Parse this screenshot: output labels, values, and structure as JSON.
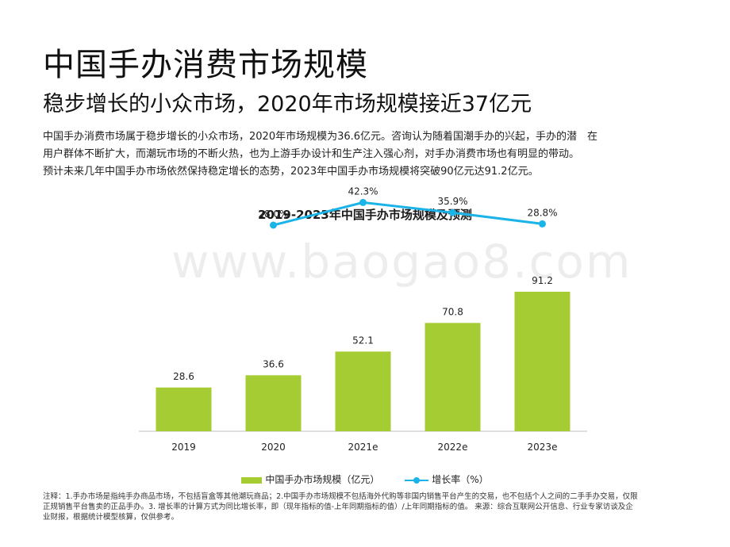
{
  "header": {
    "title": "中国手办消费市场规模",
    "subtitle": "稳步增长的小众市场，2020年市场规模接近37亿元"
  },
  "description": {
    "line1": "中国手办消费市场属于稳步增长的小众市场，2020年市场规模为36.6亿元。咨询认为随着国潮手办的兴起，手办的潜　在",
    "line2": "用户群体不断扩大，而潮玩市场的不断火热，也为上游手办设计和生产注入强心剂，对手办消费市场也有明显的带动。",
    "line3": "预计未来几年中国手办市场依然保持稳定增长的态势，2023年中国手办市场规模将突破90亿元达91.2亿元。"
  },
  "watermark": "www.baogao8.com",
  "chart_data": {
    "type": "bar",
    "title": "2019-2023年中国手办市场规模及预测",
    "categories": [
      "2019",
      "2020",
      "2021e",
      "2022e",
      "2023e"
    ],
    "series": [
      {
        "name": "中国手办市场规模（亿元）",
        "type": "bar",
        "values": [
          28.6,
          36.6,
          52.1,
          70.8,
          91.2
        ],
        "labels": [
          "28.6",
          "36.6",
          "52.1",
          "70.8",
          "91.2"
        ],
        "color": "#a6cc33"
      },
      {
        "name": "增长率（%）",
        "type": "line",
        "values": [
          null,
          28.0,
          42.3,
          35.9,
          28.8
        ],
        "labels": [
          "",
          "28.0%",
          "42.3%",
          "35.9%",
          "28.8%"
        ],
        "color": "#1ab4e8"
      }
    ],
    "ylim": [
      0,
      100
    ],
    "y2lim": [
      -40,
      50
    ],
    "grid": false,
    "legend": "bottom"
  },
  "note": {
    "line1": "注释：1.手办市场是指纯手办商品市场，不包括盲盒等其他潮玩商品；2.中国手办市场规模不包括海外代购等非国内销售平台产生的交易，也不包括个人之间的二手手办交易，仅限",
    "line2": "正规销售平台售卖的正品手办。3. 增长率的计算方式为同比增长率，即（现年指标的值-上年同期指标的值）/上年同期指标的值。 来源：综合互联网公开信息、行业专家访谈及企",
    "line3": "业财报，根据统计模型核算，仅供参考。"
  }
}
